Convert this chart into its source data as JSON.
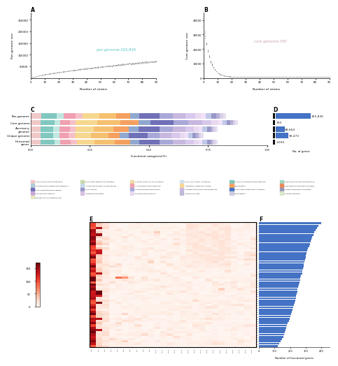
{
  "panel_A": {
    "title": "A",
    "xlabel": "Number of strains",
    "ylabel": "Pan-genome size",
    "annotation": "pan-genome:265,836",
    "annotation_color": "#5bc8c8",
    "x_max": 90,
    "y_max": 280000,
    "y_ticks": [
      50000,
      100000,
      150000,
      200000,
      250000
    ]
  },
  "panel_B": {
    "title": "B",
    "xlabel": "Number of strains",
    "ylabel": "Core genome size",
    "annotation": "core genome:700",
    "annotation_color": "#c8a0b4",
    "x_max": 90,
    "y_ticks": [
      0,
      10000,
      20000,
      30000,
      40000
    ]
  },
  "panel_C": {
    "title": "C",
    "ylabel_labels": [
      "Pan-genome",
      "Core genome",
      "Accessory genome",
      "Unique genome",
      "Horizontal genes"
    ],
    "xlabel": "Functional categories(%)"
  },
  "panel_D": {
    "title": "D",
    "values": [
      265836,
      700,
      68664,
      96472,
      2692
    ],
    "labels": [
      "265,836",
      "700",
      "68,664",
      "96,472",
      "2,692"
    ],
    "bar_color": "#4472c4",
    "ylabel": "No. of genes"
  },
  "panel_E": {
    "title": "E",
    "colormap": "Reds",
    "vmin": 0,
    "vmax": 170,
    "cbar_ticks": [
      0,
      50,
      100,
      150
    ]
  },
  "panel_F": {
    "title": "F",
    "xlabel": "Number of functional genes",
    "bar_color": "#4472c4"
  },
  "colors": {
    "background": "#ffffff",
    "text": "#000000",
    "light_gray": "#e8e8e8"
  }
}
